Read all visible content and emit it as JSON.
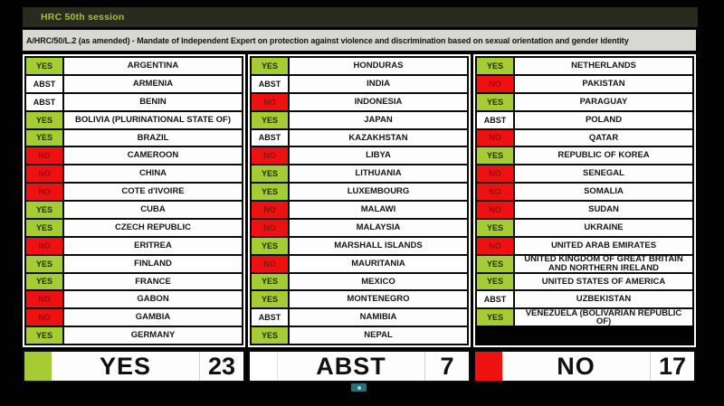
{
  "header": {
    "session_label": "HRC 50th session"
  },
  "resolution_title": "A/HRC/50/L.2 (as amended) - Mandate of Independent Expert on protection against violence and discrimination based on sexual orientation and gender identity",
  "colors": {
    "yes_bg": "#a6cc34",
    "no_bg": "#ee1111",
    "abst_bg": "#ffffff"
  },
  "columns": [
    {
      "rows": [
        {
          "vote": "YES",
          "country": "ARGENTINA"
        },
        {
          "vote": "ABST",
          "country": "ARMENIA"
        },
        {
          "vote": "ABST",
          "country": "BENIN"
        },
        {
          "vote": "YES",
          "country": "BOLIVIA (PLURINATIONAL STATE OF)"
        },
        {
          "vote": "YES",
          "country": "BRAZIL"
        },
        {
          "vote": "NO",
          "country": "CAMEROON"
        },
        {
          "vote": "NO",
          "country": "CHINA"
        },
        {
          "vote": "NO",
          "country": "COTE d'IVOIRE"
        },
        {
          "vote": "YES",
          "country": "CUBA"
        },
        {
          "vote": "YES",
          "country": "CZECH REPUBLIC"
        },
        {
          "vote": "NO",
          "country": "ERITREA"
        },
        {
          "vote": "YES",
          "country": "FINLAND"
        },
        {
          "vote": "YES",
          "country": "FRANCE"
        },
        {
          "vote": "NO",
          "country": "GABON"
        },
        {
          "vote": "NO",
          "country": "GAMBIA"
        },
        {
          "vote": "YES",
          "country": "GERMANY"
        }
      ]
    },
    {
      "rows": [
        {
          "vote": "YES",
          "country": "HONDURAS"
        },
        {
          "vote": "ABST",
          "country": "INDIA"
        },
        {
          "vote": "NO",
          "country": "INDONESIA"
        },
        {
          "vote": "YES",
          "country": "JAPAN"
        },
        {
          "vote": "ABST",
          "country": "KAZAKHSTAN"
        },
        {
          "vote": "NO",
          "country": "LIBYA"
        },
        {
          "vote": "YES",
          "country": "LITHUANIA"
        },
        {
          "vote": "YES",
          "country": "LUXEMBOURG"
        },
        {
          "vote": "NO",
          "country": "MALAWI"
        },
        {
          "vote": "NO",
          "country": "MALAYSIA"
        },
        {
          "vote": "YES",
          "country": "MARSHALL ISLANDS"
        },
        {
          "vote": "NO",
          "country": "MAURITANIA"
        },
        {
          "vote": "YES",
          "country": "MEXICO"
        },
        {
          "vote": "YES",
          "country": "MONTENEGRO"
        },
        {
          "vote": "ABST",
          "country": "NAMIBIA"
        },
        {
          "vote": "YES",
          "country": "NEPAL"
        }
      ]
    },
    {
      "rows": [
        {
          "vote": "YES",
          "country": "NETHERLANDS"
        },
        {
          "vote": "NO",
          "country": "PAKISTAN"
        },
        {
          "vote": "YES",
          "country": "PARAGUAY"
        },
        {
          "vote": "ABST",
          "country": "POLAND"
        },
        {
          "vote": "NO",
          "country": "QATAR"
        },
        {
          "vote": "YES",
          "country": "REPUBLIC OF KOREA"
        },
        {
          "vote": "NO",
          "country": "SENEGAL"
        },
        {
          "vote": "NO",
          "country": "SOMALIA"
        },
        {
          "vote": "NO",
          "country": "SUDAN"
        },
        {
          "vote": "YES",
          "country": "UKRAINE"
        },
        {
          "vote": "NO",
          "country": "UNITED ARAB EMIRATES"
        },
        {
          "vote": "YES",
          "country": "UNITED KINGDOM OF GREAT BRITAIN AND NORTHERN IRELAND"
        },
        {
          "vote": "YES",
          "country": "UNITED STATES OF AMERICA"
        },
        {
          "vote": "ABST",
          "country": "UZBEKISTAN"
        },
        {
          "vote": "YES",
          "country": "VENEZUELA (BOLIVARIAN REPUBLIC OF)"
        },
        {
          "vote": "",
          "country": "",
          "empty": true
        }
      ]
    }
  ],
  "summary": [
    {
      "key": "yes",
      "label": "YES",
      "count": "23"
    },
    {
      "key": "abst",
      "label": "ABST",
      "count": "7"
    },
    {
      "key": "no",
      "label": "NO",
      "count": "17"
    }
  ]
}
